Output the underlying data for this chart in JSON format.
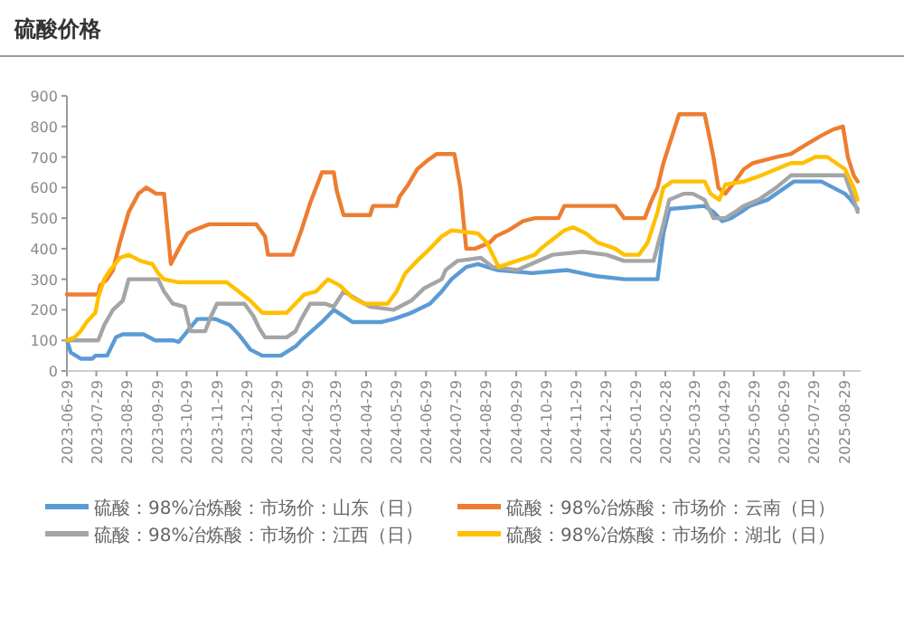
{
  "chart_data": {
    "type": "line",
    "title": "硫酸价格",
    "xlim": [
      "2023-06-29",
      "2025-09-15"
    ],
    "xticks": [
      "2023-06-29",
      "2023-07-29",
      "2023-08-29",
      "2023-09-29",
      "2023-10-29",
      "2023-11-29",
      "2023-12-29",
      "2024-01-29",
      "2024-02-29",
      "2024-03-29",
      "2024-04-29",
      "2024-05-29",
      "2024-06-29",
      "2024-07-29",
      "2024-08-29",
      "2024-09-29",
      "2024-10-29",
      "2024-11-29",
      "2024-12-29",
      "2025-01-29",
      "2025-02-28",
      "2025-03-29",
      "2025-04-29",
      "2025-05-29",
      "2025-06-29",
      "2025-07-29",
      "2025-08-29"
    ],
    "ylim": [
      0,
      900
    ],
    "yticks": [
      0,
      100,
      200,
      300,
      400,
      500,
      600,
      700,
      800,
      900
    ],
    "legend": "bottom",
    "series": [
      {
        "name": "硫酸：98%冶炼酸：市场价：山东（日）",
        "color": "#5b9bd5",
        "x": [
          "2023-06-29",
          "2023-07-03",
          "2023-07-13",
          "2023-07-25",
          "2023-07-28",
          "2023-08-09",
          "2023-08-12",
          "2023-08-18",
          "2023-08-25",
          "2023-09-15",
          "2023-09-27",
          "2023-10-15",
          "2023-10-21",
          "2023-11-09",
          "2023-11-27",
          "2023-12-12",
          "2023-12-21",
          "2024-01-02",
          "2024-01-14",
          "2024-02-02",
          "2024-02-17",
          "2024-02-23",
          "2024-03-15",
          "2024-03-27",
          "2024-04-15",
          "2024-05-15",
          "2024-05-27",
          "2024-06-14",
          "2024-07-03",
          "2024-07-15",
          "2024-07-25",
          "2024-08-09",
          "2024-08-21",
          "2024-09-10",
          "2024-10-15",
          "2024-11-20",
          "2024-12-20",
          "2025-01-17",
          "2025-02-20",
          "2025-02-26",
          "2025-03-04",
          "2025-04-09",
          "2025-04-18",
          "2025-04-27",
          "2025-05-06",
          "2025-05-16",
          "2025-05-25",
          "2025-06-12",
          "2025-06-21",
          "2025-06-30",
          "2025-07-09",
          "2025-08-06",
          "2025-08-18",
          "2025-08-30",
          "2025-09-05",
          "2025-09-12"
        ],
        "values": [
          100,
          60,
          40,
          40,
          50,
          50,
          70,
          110,
          120,
          120,
          100,
          100,
          95,
          170,
          170,
          150,
          120,
          70,
          50,
          50,
          80,
          100,
          160,
          200,
          160,
          160,
          170,
          190,
          220,
          260,
          300,
          340,
          350,
          330,
          320,
          330,
          310,
          300,
          300,
          450,
          530,
          540,
          520,
          490,
          500,
          520,
          540,
          560,
          580,
          600,
          620,
          620,
          600,
          580,
          560,
          530
        ]
      },
      {
        "name": "硫酸：98%冶炼酸：市场价：云南（日）",
        "color": "#ed7d31",
        "x": [
          "2023-06-29",
          "2023-07-31",
          "2023-08-02",
          "2023-08-09",
          "2023-08-15",
          "2023-08-22",
          "2023-08-31",
          "2023-09-10",
          "2023-09-18",
          "2023-09-28",
          "2023-10-06",
          "2023-10-13",
          "2023-10-21",
          "2023-10-30",
          "2023-11-05",
          "2023-11-21",
          "2024-01-08",
          "2024-01-17",
          "2024-01-20",
          "2024-02-14",
          "2024-02-23",
          "2024-03-03",
          "2024-03-15",
          "2024-03-27",
          "2024-03-30",
          "2024-04-06",
          "2024-05-03",
          "2024-05-06",
          "2024-05-30",
          "2024-06-02",
          "2024-06-11",
          "2024-06-20",
          "2024-07-01",
          "2024-07-10",
          "2024-07-28",
          "2024-08-03",
          "2024-08-09",
          "2024-08-18",
          "2024-09-02",
          "2024-09-08",
          "2024-09-21",
          "2024-10-06",
          "2024-10-18",
          "2024-11-11",
          "2024-11-17",
          "2025-01-08",
          "2025-01-17",
          "2025-02-07",
          "2025-02-13",
          "2025-02-20",
          "2025-02-26",
          "2025-03-04",
          "2025-03-10",
          "2025-03-14",
          "2025-04-09",
          "2025-04-13",
          "2025-04-18",
          "2025-04-23",
          "2025-04-30",
          "2025-05-10",
          "2025-05-19",
          "2025-05-28",
          "2025-06-21",
          "2025-07-06",
          "2025-07-21",
          "2025-08-06",
          "2025-08-18",
          "2025-08-28",
          "2025-09-02",
          "2025-09-08",
          "2025-09-12"
        ],
        "values": [
          250,
          250,
          280,
          300,
          330,
          420,
          520,
          580,
          600,
          580,
          580,
          350,
          400,
          450,
          460,
          480,
          480,
          440,
          380,
          380,
          460,
          550,
          650,
          650,
          590,
          510,
          510,
          540,
          540,
          570,
          610,
          660,
          690,
          710,
          710,
          600,
          400,
          400,
          420,
          440,
          460,
          490,
          500,
          500,
          540,
          540,
          500,
          500,
          550,
          600,
          680,
          740,
          800,
          840,
          840,
          780,
          700,
          600,
          580,
          620,
          660,
          680,
          700,
          710,
          740,
          770,
          790,
          800,
          700,
          640,
          620
        ]
      },
      {
        "name": "硫酸：98%冶炼酸：市场价：江西（日）",
        "color": "#a5a5a5",
        "x": [
          "2023-06-29",
          "2023-07-31",
          "2023-08-06",
          "2023-08-15",
          "2023-08-25",
          "2023-08-31",
          "2023-09-30",
          "2023-10-06",
          "2023-10-15",
          "2023-10-27",
          "2023-11-02",
          "2023-11-17",
          "2023-11-23",
          "2023-11-29",
          "2023-12-27",
          "2024-01-05",
          "2024-01-11",
          "2024-01-17",
          "2024-02-08",
          "2024-02-17",
          "2024-02-23",
          "2024-03-03",
          "2024-03-18",
          "2024-03-27",
          "2024-04-06",
          "2024-05-03",
          "2024-05-27",
          "2024-06-14",
          "2024-06-27",
          "2024-07-15",
          "2024-07-19",
          "2024-07-31",
          "2024-08-24",
          "2024-09-05",
          "2024-09-30",
          "2024-11-05",
          "2024-12-06",
          "2024-12-30",
          "2025-01-17",
          "2025-02-16",
          "2025-02-26",
          "2025-03-04",
          "2025-03-19",
          "2025-03-28",
          "2025-04-09",
          "2025-04-18",
          "2025-04-30",
          "2025-05-10",
          "2025-05-19",
          "2025-06-03",
          "2025-06-21",
          "2025-07-06",
          "2025-08-30",
          "2025-09-08",
          "2025-09-12"
        ],
        "values": [
          100,
          100,
          150,
          200,
          230,
          300,
          300,
          260,
          220,
          210,
          130,
          130,
          180,
          220,
          220,
          180,
          140,
          110,
          110,
          130,
          170,
          220,
          220,
          210,
          260,
          210,
          200,
          230,
          270,
          300,
          330,
          360,
          370,
          340,
          330,
          380,
          390,
          380,
          360,
          360,
          480,
          560,
          580,
          580,
          560,
          500,
          500,
          520,
          540,
          560,
          600,
          640,
          640,
          560,
          520
        ]
      },
      {
        "name": "硫酸：98%冶炼酸：市场价：湖北（日）",
        "color": "#ffc000",
        "x": [
          "2023-06-29",
          "2023-07-07",
          "2023-07-13",
          "2023-07-19",
          "2023-07-28",
          "2023-07-31",
          "2023-08-06",
          "2023-08-12",
          "2023-08-22",
          "2023-08-31",
          "2023-09-12",
          "2023-09-24",
          "2023-09-30",
          "2023-10-06",
          "2023-10-21",
          "2023-12-09",
          "2024-01-02",
          "2024-01-14",
          "2024-02-08",
          "2024-02-14",
          "2024-02-26",
          "2024-03-09",
          "2024-03-21",
          "2024-04-02",
          "2024-04-15",
          "2024-04-27",
          "2024-05-21",
          "2024-05-30",
          "2024-06-08",
          "2024-06-20",
          "2024-07-03",
          "2024-07-15",
          "2024-07-25",
          "2024-08-21",
          "2024-08-30",
          "2024-09-05",
          "2024-09-11",
          "2024-10-18",
          "2024-10-24",
          "2024-11-05",
          "2024-11-17",
          "2024-11-26",
          "2024-12-09",
          "2024-12-21",
          "2024-12-30",
          "2025-01-08",
          "2025-01-17",
          "2025-02-01",
          "2025-02-10",
          "2025-02-20",
          "2025-02-26",
          "2025-03-07",
          "2025-04-09",
          "2025-04-15",
          "2025-04-24",
          "2025-04-30",
          "2025-05-19",
          "2025-06-06",
          "2025-06-21",
          "2025-07-06",
          "2025-07-18",
          "2025-07-31",
          "2025-08-12",
          "2025-08-30",
          "2025-09-08",
          "2025-09-12"
        ],
        "values": [
          100,
          110,
          130,
          160,
          190,
          240,
          300,
          330,
          370,
          380,
          360,
          350,
          320,
          300,
          290,
          290,
          230,
          190,
          190,
          210,
          250,
          260,
          300,
          280,
          240,
          220,
          220,
          260,
          320,
          360,
          400,
          440,
          460,
          450,
          420,
          380,
          340,
          380,
          400,
          430,
          460,
          470,
          450,
          420,
          410,
          400,
          380,
          380,
          420,
          520,
          600,
          620,
          620,
          580,
          560,
          610,
          620,
          640,
          660,
          680,
          680,
          700,
          700,
          660,
          600,
          560
        ]
      }
    ]
  }
}
